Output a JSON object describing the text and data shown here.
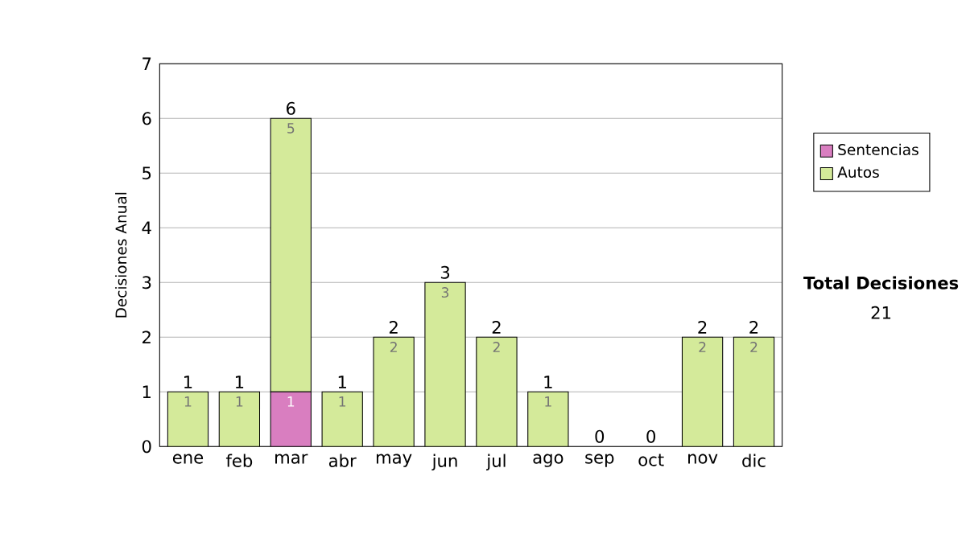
{
  "chart_data": {
    "type": "bar",
    "stacked": true,
    "ylabel": "Decisiones Anual",
    "categories": [
      "ene",
      "feb",
      "mar",
      "abr",
      "may",
      "jun",
      "jul",
      "ago",
      "sep",
      "oct",
      "nov",
      "dic"
    ],
    "series": [
      {
        "name": "Sentencias",
        "color": "#d97ec0",
        "values": [
          0,
          0,
          1,
          0,
          0,
          0,
          0,
          0,
          0,
          0,
          0,
          0
        ],
        "value_labels": [
          null,
          null,
          "1",
          null,
          null,
          null,
          null,
          null,
          null,
          null,
          null,
          null
        ]
      },
      {
        "name": "Autos",
        "color": "#d4ea9a",
        "values": [
          1,
          1,
          5,
          1,
          2,
          3,
          2,
          1,
          0,
          0,
          2,
          2
        ],
        "value_labels": [
          "1",
          "1",
          "5",
          "1",
          "2",
          "3",
          "2",
          "1",
          null,
          null,
          "2",
          "2"
        ]
      }
    ],
    "totals": [
      "1",
      "1",
      "6",
      "1",
      "2",
      "3",
      "2",
      "1",
      "0",
      "0",
      "2",
      "2"
    ],
    "ylim": [
      0,
      7
    ],
    "yticks": [
      0,
      1,
      2,
      3,
      4,
      5,
      6,
      7
    ],
    "grid": "y",
    "legend": "right",
    "annotations": [
      "**Total Decisiones**",
      "21"
    ]
  }
}
